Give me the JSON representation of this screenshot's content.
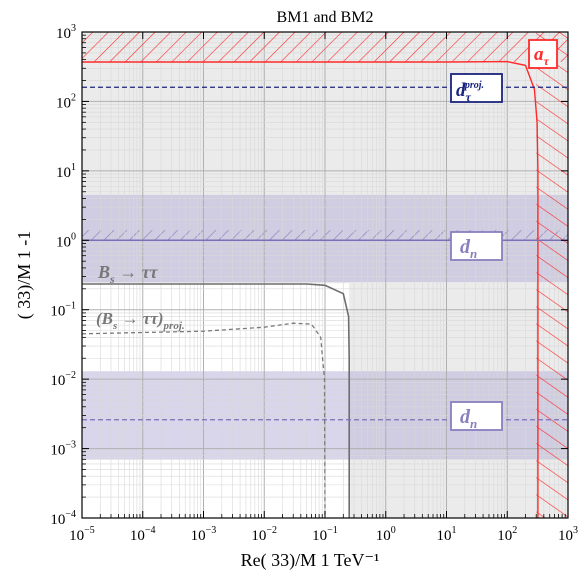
{
  "chart_data": {
    "type": "region_plot",
    "title": "BM1 and BM2",
    "xlabel": "Re(   33)/M   1 TeV⁻¹",
    "ylabel": "(   33)/M   1                    -1",
    "xscale": "log",
    "yscale": "log",
    "xlim": [
      1e-05,
      1000
    ],
    "ylim": [
      0.0001,
      1000
    ],
    "x_ticks": [
      {
        "base": "10",
        "exp": "−5",
        "value": 1e-05
      },
      {
        "base": "10",
        "exp": "−4",
        "value": 0.0001
      },
      {
        "base": "10",
        "exp": "−3",
        "value": 0.001
      },
      {
        "base": "10",
        "exp": "−2",
        "value": 0.01
      },
      {
        "base": "10",
        "exp": "−1",
        "value": 0.1
      },
      {
        "base": "10",
        "exp": "0",
        "value": 1
      },
      {
        "base": "10",
        "exp": "1",
        "value": 10
      },
      {
        "base": "10",
        "exp": "2",
        "value": 100
      },
      {
        "base": "10",
        "exp": "3",
        "value": 1000
      }
    ],
    "y_ticks": [
      {
        "base": "10",
        "exp": "−4",
        "value": 0.0001
      },
      {
        "base": "10",
        "exp": "−3",
        "value": 0.001
      },
      {
        "base": "10",
        "exp": "−2",
        "value": 0.01
      },
      {
        "base": "10",
        "exp": "−1",
        "value": 0.1
      },
      {
        "base": "10",
        "exp": "0",
        "value": 1
      },
      {
        "base": "10",
        "exp": "1",
        "value": 10
      },
      {
        "base": "10",
        "exp": "2",
        "value": 100
      },
      {
        "base": "10",
        "exp": "3",
        "value": 1000
      }
    ],
    "grid": true,
    "regions": {
      "a_tau": {
        "label": "a",
        "sub": "τ",
        "y_min": 370,
        "x_min": 300,
        "color": "#ff2a2a"
      },
      "d_tau_proj": {
        "label": "d",
        "sub": "τ",
        "sup": "proj.",
        "y_line": 160,
        "color": "#1a237e"
      },
      "d_n_upper": {
        "label": "d",
        "sub": "n",
        "y_line": 1.0,
        "band": [
          0.25,
          4.5
        ],
        "hatch": [
          1.0,
          1.4
        ],
        "color": "#8a7fbf"
      },
      "d_n_lower": {
        "label": "d",
        "sub": "n",
        "y_line": 0.0026,
        "band": [
          0.0007,
          0.013
        ],
        "color": "#8a7fbf"
      },
      "bs_tautau": {
        "label": "B",
        "sub": "s",
        "rest": "→ ττ",
        "x_boundary": 0.25,
        "y_boundary": 0.24,
        "color": "#777777"
      },
      "bs_tautau_proj": {
        "label": "(B",
        "sub": "s",
        "rest": "→ ττ)",
        "sub2": "proj.",
        "x_boundary": 0.1,
        "y_boundary": 0.065,
        "color": "#777777"
      },
      "excluded_gray": {
        "x_min": 0.25,
        "y_min": 0.24
      }
    },
    "curves": [
      {
        "name": "bs_solid",
        "points": [
          [
            1e-05,
            0.235
          ],
          [
            0.05,
            0.235
          ],
          [
            0.1,
            0.225
          ],
          [
            0.2,
            0.17
          ],
          [
            0.245,
            0.08
          ],
          [
            0.25,
            0.02
          ],
          [
            0.25,
            0.0001
          ]
        ]
      },
      {
        "name": "bs_dashed",
        "points": [
          [
            1e-05,
            0.045
          ],
          [
            0.001,
            0.049
          ],
          [
            0.01,
            0.056
          ],
          [
            0.03,
            0.064
          ],
          [
            0.06,
            0.062
          ],
          [
            0.085,
            0.04
          ],
          [
            0.098,
            0.01
          ],
          [
            0.1,
            0.0001
          ]
        ]
      },
      {
        "name": "a_tau",
        "points": [
          [
            1e-05,
            370
          ],
          [
            10,
            370
          ],
          [
            100,
            375
          ],
          [
            200,
            330
          ],
          [
            280,
            150
          ],
          [
            310,
            50
          ],
          [
            320,
            10
          ],
          [
            320,
            0.0001
          ]
        ]
      }
    ]
  }
}
